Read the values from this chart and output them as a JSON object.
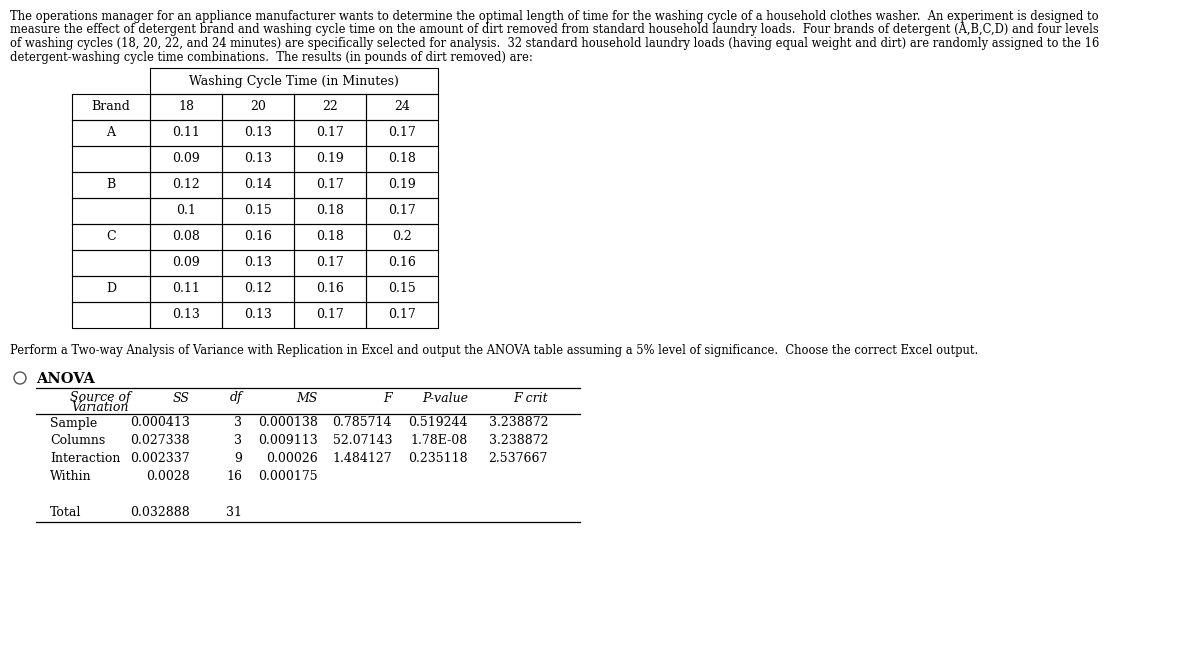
{
  "intro_text": "The operations manager for an appliance manufacturer wants to determine the optimal length of time for the washing cycle of a household clothes washer.  An experiment is designed to\nmeasure the effect of detergent brand and washing cycle time on the amount of dirt removed from standard household laundry loads.  Four brands of detergent (A,B,C,D) and four levels\nof washing cycles (18, 20, 22, and 24 minutes) are specifically selected for analysis.  32 standard household laundry loads (having equal weight and dirt) are randomly assigned to the 16\ndetergent-washing cycle time combinations.  The results (in pounds of dirt removed) are:",
  "table_header_top": "Washing Cycle Time (in Minutes)",
  "table_col_headers": [
    "Brand",
    "18",
    "20",
    "22",
    "24"
  ],
  "table_data": [
    [
      "A",
      "0.11",
      "0.13",
      "0.17",
      "0.17"
    ],
    [
      "",
      "0.09",
      "0.13",
      "0.19",
      "0.18"
    ],
    [
      "B",
      "0.12",
      "0.14",
      "0.17",
      "0.19"
    ],
    [
      "",
      "0.1",
      "0.15",
      "0.18",
      "0.17"
    ],
    [
      "C",
      "0.08",
      "0.16",
      "0.18",
      "0.2"
    ],
    [
      "",
      "0.09",
      "0.13",
      "0.17",
      "0.16"
    ],
    [
      "D",
      "0.11",
      "0.12",
      "0.16",
      "0.15"
    ],
    [
      "",
      "0.13",
      "0.13",
      "0.17",
      "0.17"
    ]
  ],
  "question_text": "Perform a Two-way Analysis of Variance with Replication in Excel and output the ANOVA table assuming a 5% level of significance.  Choose the correct Excel output.",
  "anova_title": "ANOVA",
  "anova_data": [
    [
      "Sample",
      "0.000413",
      "3",
      "0.000138",
      "0.785714",
      "0.519244",
      "3.238872"
    ],
    [
      "Columns",
      "0.027338",
      "3",
      "0.009113",
      "52.07143",
      "1.78E-08",
      "3.238872"
    ],
    [
      "Interaction",
      "0.002337",
      "9",
      "0.00026",
      "1.484127",
      "0.235118",
      "2.537667"
    ],
    [
      "Within",
      "0.0028",
      "16",
      "0.000175",
      "",
      "",
      ""
    ],
    [
      "",
      "",
      "",
      "",
      "",
      "",
      ""
    ],
    [
      "Total",
      "0.032888",
      "31",
      "",
      "",
      "",
      ""
    ]
  ],
  "bg_color": "#ffffff",
  "text_color": "#000000",
  "font_size_intro": 8.3,
  "font_size_table": 9.0,
  "font_size_anova": 9.0
}
